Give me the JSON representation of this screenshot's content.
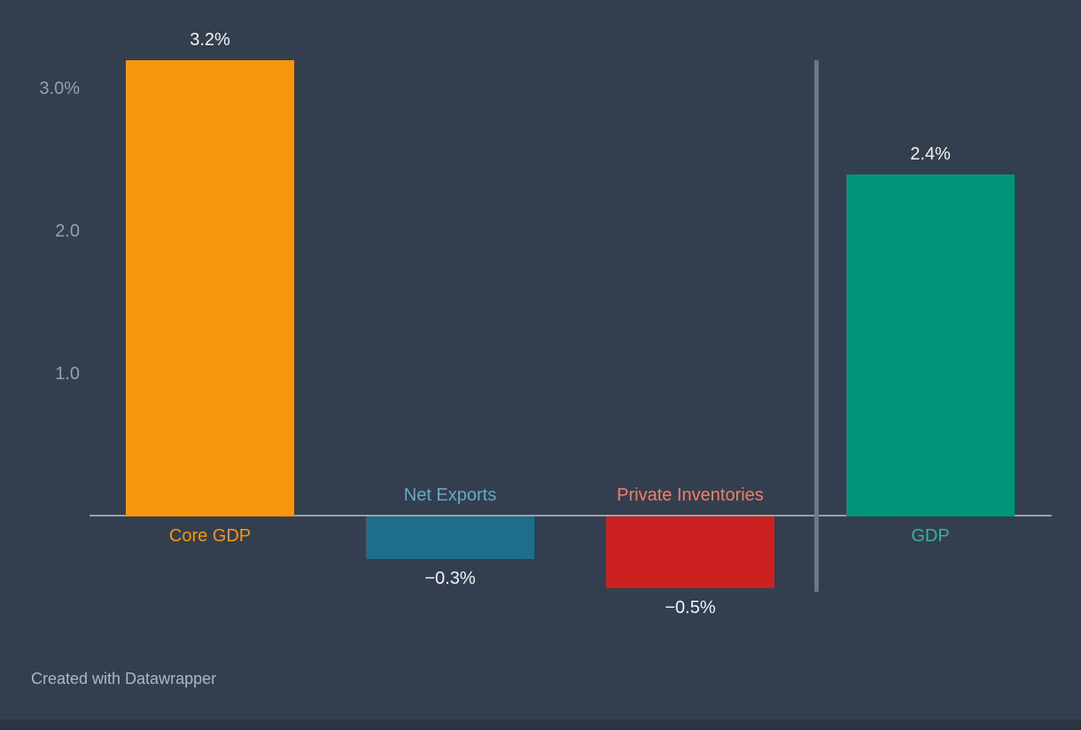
{
  "page": {
    "background_color": "#333E4E",
    "bottom_edge_color": "#2B3442"
  },
  "chart_data": {
    "type": "bar",
    "title": "",
    "categories": [
      "Core GDP",
      "Net Exports",
      "Private Inventories",
      "GDP"
    ],
    "values": [
      3.2,
      -0.3,
      -0.5,
      2.4
    ],
    "value_labels": [
      "3.2%",
      "−0.3%",
      "−0.5%",
      "2.4%"
    ],
    "bar_colors": [
      "#F8960D",
      "#1D6E8D",
      "#CB2121",
      "#009579"
    ],
    "category_label_colors": [
      "#F8960D",
      "#63A8C9",
      "#F47D68",
      "#38B597"
    ],
    "value_label_color": "#F4F5F6",
    "xlabel": "",
    "ylabel": "",
    "ylim": [
      -0.75,
      3.4
    ],
    "grid": false,
    "legend": "none",
    "y_axis": {
      "ticks": [
        {
          "label": "3.0%",
          "value": 3.0
        },
        {
          "label": "2.0",
          "value": 2.0
        },
        {
          "label": "1.0",
          "value": 1.0
        }
      ],
      "tick_color": "#98A0AB"
    },
    "baseline": {
      "value": 0,
      "color": "#9C9FA3"
    },
    "divider": {
      "between": [
        "Private Inventories",
        "GDP"
      ],
      "color": "#6E7681"
    }
  },
  "footer": {
    "credit": "Created with Datawrapper"
  }
}
